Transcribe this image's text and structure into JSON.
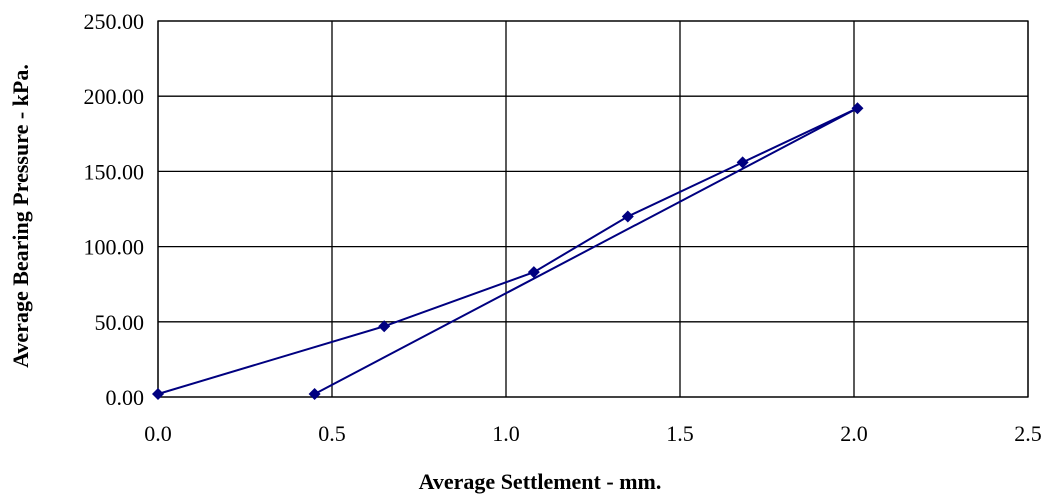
{
  "chart_data": {
    "type": "scatter",
    "title": "",
    "xlabel": "Average Settlement - mm.",
    "ylabel": "Average Bearing Pressure - kPa.",
    "xlim": [
      0,
      2.5
    ],
    "ylim": [
      0,
      250
    ],
    "x_ticks": [
      "0.0",
      "0.5",
      "1.0",
      "1.5",
      "2.0",
      "2.5"
    ],
    "y_ticks": [
      "0.00",
      "50.00",
      "100.00",
      "150.00",
      "200.00",
      "250.00"
    ],
    "grid": true,
    "legend": "none",
    "lines_connect_points": true,
    "marker": "diamond",
    "series": [
      {
        "color": "#000080",
        "points": [
          {
            "x": 0.0,
            "y": 2
          },
          {
            "x": 0.65,
            "y": 47
          },
          {
            "x": 1.08,
            "y": 83
          },
          {
            "x": 1.35,
            "y": 120
          },
          {
            "x": 1.68,
            "y": 156
          },
          {
            "x": 2.01,
            "y": 192
          },
          {
            "x": 0.45,
            "y": 2
          }
        ]
      }
    ]
  }
}
